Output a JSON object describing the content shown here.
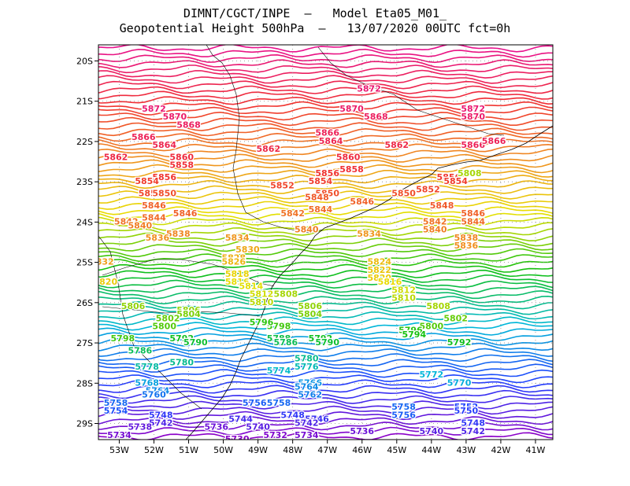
{
  "header": {
    "title_line1": "DIMNT/CGCT/INPE  –   Model Eta05_M01_",
    "title_line2": "Geopotential Height 500hPa  –   13/07/2020 00UTC fct=0h"
  },
  "map": {
    "lon_range": [
      -53.6,
      -40.5
    ],
    "lat_range": [
      -29.4,
      -19.6
    ],
    "lat_ticks": [
      "20S",
      "21S",
      "22S",
      "23S",
      "24S",
      "25S",
      "26S",
      "27S",
      "28S",
      "29S"
    ],
    "lat_tick_values": [
      -20,
      -21,
      -22,
      -23,
      -24,
      -25,
      -26,
      -27,
      -28,
      -29
    ],
    "lon_ticks": [
      "53W",
      "52W",
      "51W",
      "50W",
      "49W",
      "48W",
      "47W",
      "46W",
      "45W",
      "44W",
      "43W",
      "42W",
      "41W"
    ],
    "lon_tick_values": [
      -53,
      -52,
      -51,
      -50,
      -49,
      -48,
      -47,
      -46,
      -45,
      -44,
      -43,
      -42,
      -41
    ],
    "grid": "dotted",
    "contour_interval": 2,
    "contour_min": 5730,
    "contour_max": 5878,
    "color_ramp": [
      "#8a00c8",
      "#2040ff",
      "#00b8d8",
      "#10c010",
      "#e8e000",
      "#f09020",
      "#f03030",
      "#e8108c"
    ],
    "contour_labels": [
      {
        "text": "5872",
        "lon": -45.8,
        "lat": -20.7
      },
      {
        "text": "5872",
        "lon": -52.0,
        "lat": -21.2
      },
      {
        "text": "5872",
        "lon": -42.8,
        "lat": -21.2
      },
      {
        "text": "5870",
        "lon": -46.3,
        "lat": -21.2
      },
      {
        "text": "5870",
        "lon": -51.4,
        "lat": -21.4
      },
      {
        "text": "5870",
        "lon": -42.8,
        "lat": -21.4
      },
      {
        "text": "5868",
        "lon": -45.6,
        "lat": -21.4
      },
      {
        "text": "5868",
        "lon": -51.0,
        "lat": -21.6
      },
      {
        "text": "5866",
        "lon": -47.0,
        "lat": -21.8
      },
      {
        "text": "5866",
        "lon": -52.3,
        "lat": -21.9
      },
      {
        "text": "5866",
        "lon": -42.8,
        "lat": -22.1
      },
      {
        "text": "5866",
        "lon": -42.2,
        "lat": -22.0
      },
      {
        "text": "5864",
        "lon": -46.9,
        "lat": -22.0
      },
      {
        "text": "5864",
        "lon": -51.7,
        "lat": -22.1
      },
      {
        "text": "5862",
        "lon": -48.7,
        "lat": -22.2
      },
      {
        "text": "5862",
        "lon": -53.1,
        "lat": -22.4
      },
      {
        "text": "5862",
        "lon": -45.0,
        "lat": -22.1
      },
      {
        "text": "5860",
        "lon": -46.4,
        "lat": -22.4
      },
      {
        "text": "5860",
        "lon": -51.2,
        "lat": -22.4
      },
      {
        "text": "5858",
        "lon": -51.2,
        "lat": -22.6
      },
      {
        "text": "5856",
        "lon": -47.0,
        "lat": -22.8
      },
      {
        "text": "5856",
        "lon": -51.7,
        "lat": -22.9
      },
      {
        "text": "5856",
        "lon": -43.5,
        "lat": -22.9
      },
      {
        "text": "5858",
        "lon": -46.3,
        "lat": -22.7
      },
      {
        "text": "5808",
        "lon": -42.9,
        "lat": -22.8
      },
      {
        "text": "5854",
        "lon": -47.2,
        "lat": -23.0
      },
      {
        "text": "5854",
        "lon": -52.2,
        "lat": -23.0
      },
      {
        "text": "5854",
        "lon": -43.3,
        "lat": -23.0
      },
      {
        "text": "5852",
        "lon": -48.3,
        "lat": -23.1
      },
      {
        "text": "5852",
        "lon": -52.1,
        "lat": -23.3
      },
      {
        "text": "5852",
        "lon": -44.1,
        "lat": -23.2
      },
      {
        "text": "5850",
        "lon": -47.0,
        "lat": -23.3
      },
      {
        "text": "5850",
        "lon": -51.7,
        "lat": -23.3
      },
      {
        "text": "5850",
        "lon": -44.8,
        "lat": -23.3
      },
      {
        "text": "5848",
        "lon": -47.3,
        "lat": -23.4
      },
      {
        "text": "5848",
        "lon": -43.7,
        "lat": -23.6
      },
      {
        "text": "5846",
        "lon": -46.0,
        "lat": -23.5
      },
      {
        "text": "5846",
        "lon": -52.0,
        "lat": -23.6
      },
      {
        "text": "5846",
        "lon": -51.1,
        "lat": -23.8
      },
      {
        "text": "5846",
        "lon": -42.8,
        "lat": -23.8
      },
      {
        "text": "5844",
        "lon": -47.2,
        "lat": -23.7
      },
      {
        "text": "5844",
        "lon": -52.0,
        "lat": -23.9
      },
      {
        "text": "5844",
        "lon": -42.8,
        "lat": -24.0
      },
      {
        "text": "5842",
        "lon": -48.0,
        "lat": -23.8
      },
      {
        "text": "5842",
        "lon": -52.8,
        "lat": -24.0
      },
      {
        "text": "5842",
        "lon": -43.9,
        "lat": -24.0
      },
      {
        "text": "5840",
        "lon": -52.4,
        "lat": -24.1
      },
      {
        "text": "5840",
        "lon": -47.6,
        "lat": -24.2
      },
      {
        "text": "5840",
        "lon": -43.9,
        "lat": -24.2
      },
      {
        "text": "5838",
        "lon": -51.3,
        "lat": -24.3
      },
      {
        "text": "5838",
        "lon": -43.0,
        "lat": -24.4
      },
      {
        "text": "5836",
        "lon": -51.9,
        "lat": -24.4
      },
      {
        "text": "5836",
        "lon": -43.0,
        "lat": -24.6
      },
      {
        "text": "5834",
        "lon": -49.6,
        "lat": -24.4
      },
      {
        "text": "5834",
        "lon": -45.8,
        "lat": -24.3
      },
      {
        "text": "5832",
        "lon": -53.5,
        "lat": -25.0
      },
      {
        "text": "5830",
        "lon": -49.3,
        "lat": -24.7
      },
      {
        "text": "5828",
        "lon": -49.7,
        "lat": -24.9
      },
      {
        "text": "5826",
        "lon": -49.7,
        "lat": -25.0
      },
      {
        "text": "5824",
        "lon": -45.5,
        "lat": -25.0
      },
      {
        "text": "5822",
        "lon": -45.5,
        "lat": -25.2
      },
      {
        "text": "5820",
        "lon": -53.4,
        "lat": -25.5
      },
      {
        "text": "5820",
        "lon": -45.5,
        "lat": -25.4
      },
      {
        "text": "5818",
        "lon": -49.6,
        "lat": -25.3
      },
      {
        "text": "5816",
        "lon": -49.6,
        "lat": -25.5
      },
      {
        "text": "5816",
        "lon": -45.2,
        "lat": -25.5
      },
      {
        "text": "5814",
        "lon": -49.2,
        "lat": -25.6
      },
      {
        "text": "5812",
        "lon": -44.8,
        "lat": -25.7
      },
      {
        "text": "5812",
        "lon": -48.9,
        "lat": -25.8
      },
      {
        "text": "5810",
        "lon": -44.8,
        "lat": -25.9
      },
      {
        "text": "5810",
        "lon": -48.9,
        "lat": -26.0
      },
      {
        "text": "5808",
        "lon": -48.2,
        "lat": -25.8
      },
      {
        "text": "5808",
        "lon": -43.8,
        "lat": -26.1
      },
      {
        "text": "5806",
        "lon": -52.6,
        "lat": -26.1
      },
      {
        "text": "5806",
        "lon": -51.0,
        "lat": -26.2
      },
      {
        "text": "5806",
        "lon": -47.5,
        "lat": -26.1
      },
      {
        "text": "5804",
        "lon": -51.0,
        "lat": -26.3
      },
      {
        "text": "5804",
        "lon": -47.5,
        "lat": -26.3
      },
      {
        "text": "5802",
        "lon": -51.6,
        "lat": -26.4
      },
      {
        "text": "5802",
        "lon": -43.3,
        "lat": -26.4
      },
      {
        "text": "5800",
        "lon": -51.7,
        "lat": -26.6
      },
      {
        "text": "5800",
        "lon": -44.0,
        "lat": -26.6
      },
      {
        "text": "5798",
        "lon": -48.4,
        "lat": -26.6
      },
      {
        "text": "5796",
        "lon": -48.9,
        "lat": -26.5
      },
      {
        "text": "5796",
        "lon": -44.6,
        "lat": -26.7
      },
      {
        "text": "5794",
        "lon": -44.5,
        "lat": -26.8
      },
      {
        "text": "5792",
        "lon": -51.2,
        "lat": -26.9
      },
      {
        "text": "5792",
        "lon": -47.2,
        "lat": -26.9
      },
      {
        "text": "5792",
        "lon": -43.2,
        "lat": -27.0
      },
      {
        "text": "5790",
        "lon": -50.8,
        "lat": -27.0
      },
      {
        "text": "5790",
        "lon": -47.0,
        "lat": -27.0
      },
      {
        "text": "5788",
        "lon": -48.4,
        "lat": -26.9
      },
      {
        "text": "5786",
        "lon": -52.4,
        "lat": -27.2
      },
      {
        "text": "5786",
        "lon": -48.2,
        "lat": -27.0
      },
      {
        "text": "5798",
        "lon": -52.9,
        "lat": -26.9
      },
      {
        "text": "5780",
        "lon": -51.2,
        "lat": -27.5
      },
      {
        "text": "5780",
        "lon": -47.6,
        "lat": -27.4
      },
      {
        "text": "5778",
        "lon": -52.2,
        "lat": -27.6
      },
      {
        "text": "5776",
        "lon": -47.6,
        "lat": -27.6
      },
      {
        "text": "5774",
        "lon": -48.4,
        "lat": -27.7
      },
      {
        "text": "5772",
        "lon": -44.0,
        "lat": -27.8
      },
      {
        "text": "5770",
        "lon": -43.2,
        "lat": -28.0
      },
      {
        "text": "5768",
        "lon": -52.2,
        "lat": -28.0
      },
      {
        "text": "5766",
        "lon": -47.5,
        "lat": -28.0
      },
      {
        "text": "5764",
        "lon": -51.9,
        "lat": -28.2
      },
      {
        "text": "5764",
        "lon": -47.6,
        "lat": -28.1
      },
      {
        "text": "5762",
        "lon": -47.5,
        "lat": -28.3
      },
      {
        "text": "5760",
        "lon": -52.0,
        "lat": -28.3
      },
      {
        "text": "5758",
        "lon": -53.1,
        "lat": -28.5
      },
      {
        "text": "5758",
        "lon": -48.4,
        "lat": -28.5
      },
      {
        "text": "5758",
        "lon": -44.8,
        "lat": -28.6
      },
      {
        "text": "5756",
        "lon": -49.1,
        "lat": -28.5
      },
      {
        "text": "5756",
        "lon": -44.8,
        "lat": -28.8
      },
      {
        "text": "5754",
        "lon": -53.1,
        "lat": -28.7
      },
      {
        "text": "5752",
        "lon": -43.0,
        "lat": -28.6
      },
      {
        "text": "5750",
        "lon": -43.0,
        "lat": -28.7
      },
      {
        "text": "5748",
        "lon": -51.8,
        "lat": -28.8
      },
      {
        "text": "5748",
        "lon": -48.0,
        "lat": -28.8
      },
      {
        "text": "5748",
        "lon": -42.8,
        "lat": -29.0
      },
      {
        "text": "5746",
        "lon": -47.3,
        "lat": -28.9
      },
      {
        "text": "5744",
        "lon": -49.5,
        "lat": -28.9
      },
      {
        "text": "5742",
        "lon": -51.8,
        "lat": -29.0
      },
      {
        "text": "5742",
        "lon": -47.6,
        "lat": -29.0
      },
      {
        "text": "5742",
        "lon": -42.8,
        "lat": -29.2
      },
      {
        "text": "5740",
        "lon": -49.0,
        "lat": -29.1
      },
      {
        "text": "5740",
        "lon": -44.0,
        "lat": -29.2
      },
      {
        "text": "5738",
        "lon": -52.4,
        "lat": -29.1
      },
      {
        "text": "5736",
        "lon": -50.2,
        "lat": -29.1
      },
      {
        "text": "5736",
        "lon": -46.0,
        "lat": -29.2
      },
      {
        "text": "5734",
        "lon": -53.0,
        "lat": -29.3
      },
      {
        "text": "5734",
        "lon": -47.6,
        "lat": -29.3
      },
      {
        "text": "5732",
        "lon": -48.5,
        "lat": -29.3
      },
      {
        "text": "5730",
        "lon": -49.6,
        "lat": -29.4
      }
    ]
  }
}
